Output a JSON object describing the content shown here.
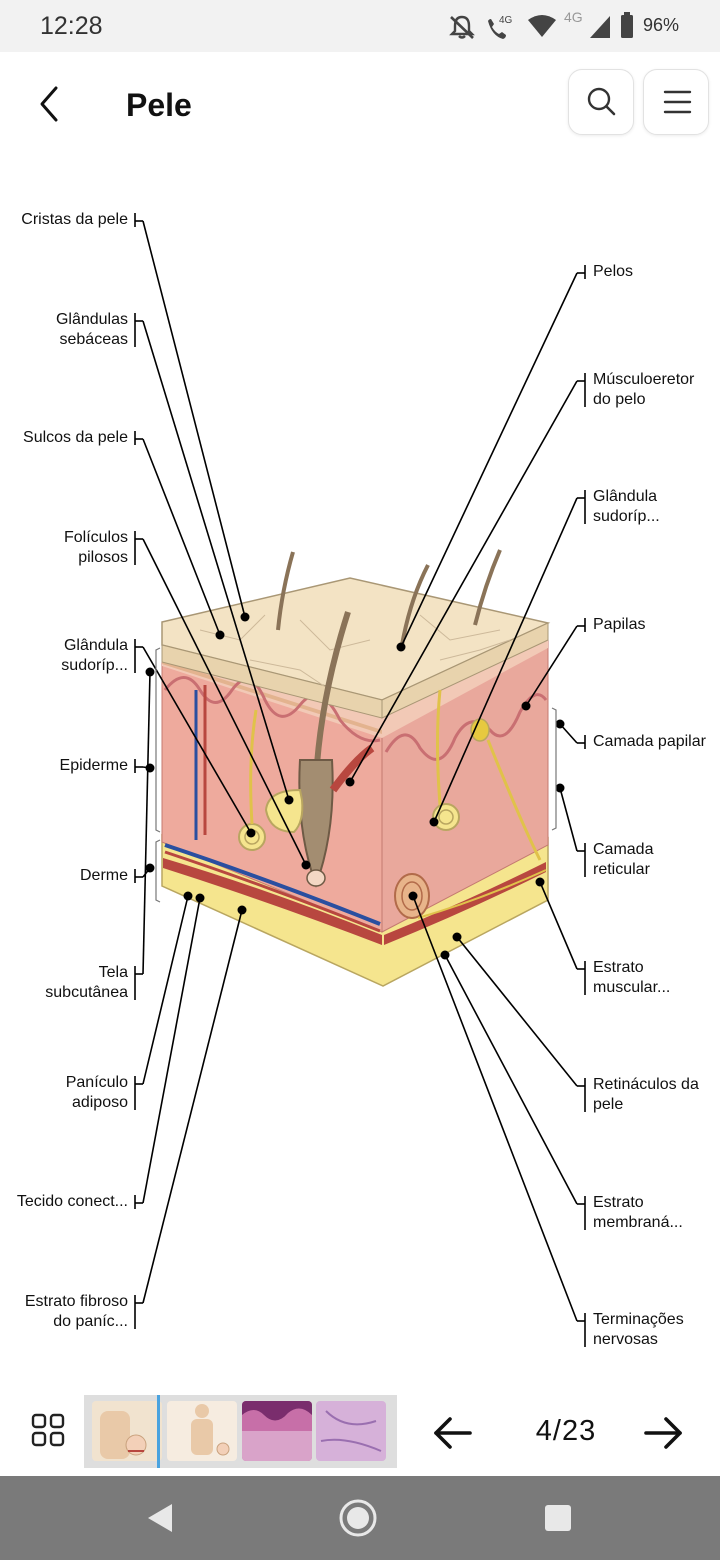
{
  "status": {
    "time": "12:28",
    "network": "4G",
    "battery": "96%"
  },
  "header": {
    "title": "Pele"
  },
  "labels_left": [
    {
      "id": "cristas",
      "lines": [
        "Cristas da pele"
      ]
    },
    {
      "id": "sebaceas",
      "lines": [
        "Glândulas",
        "sebáceas"
      ]
    },
    {
      "id": "sulcos",
      "lines": [
        "Sulcos da pele"
      ]
    },
    {
      "id": "foliculos",
      "lines": [
        "Folículos",
        "pilosos"
      ]
    },
    {
      "id": "sudorip-left",
      "lines": [
        "Glândula",
        "sudoríp..."
      ]
    },
    {
      "id": "epiderme",
      "lines": [
        "Epiderme"
      ]
    },
    {
      "id": "derme",
      "lines": [
        "Derme"
      ]
    },
    {
      "id": "tela",
      "lines": [
        "Tela",
        "subcutânea"
      ]
    },
    {
      "id": "paniculo",
      "lines": [
        "Panículo",
        "adiposo"
      ]
    },
    {
      "id": "tecido",
      "lines": [
        "Tecido conect..."
      ]
    },
    {
      "id": "estrato-fibroso",
      "lines": [
        "Estrato fibroso",
        "do paníc..."
      ]
    }
  ],
  "labels_right": [
    {
      "id": "pelos",
      "lines": [
        "Pelos"
      ]
    },
    {
      "id": "musculo",
      "lines": [
        "Músculoeretor",
        "do pelo"
      ]
    },
    {
      "id": "sudorip-right",
      "lines": [
        "Glândula",
        "sudoríp..."
      ]
    },
    {
      "id": "papilas",
      "lines": [
        "Papilas"
      ]
    },
    {
      "id": "camada-papilar",
      "lines": [
        "Camada papilar"
      ]
    },
    {
      "id": "camada-reticular",
      "lines": [
        "Camada",
        "reticular"
      ]
    },
    {
      "id": "estrato-muscular",
      "lines": [
        "Estrato",
        "muscular..."
      ]
    },
    {
      "id": "retinaculos",
      "lines": [
        "Retináculos da",
        "pele"
      ]
    },
    {
      "id": "estrato-membrana",
      "lines": [
        "Estrato",
        "membraná..."
      ]
    },
    {
      "id": "terminacoes",
      "lines": [
        "Terminações",
        "nervosas"
      ]
    }
  ],
  "pager": {
    "current": "4",
    "total": "23",
    "display": "4/23"
  },
  "thumbnails": [
    {
      "name": "body-arm-view",
      "active": true
    },
    {
      "name": "body-front-view",
      "active": false
    },
    {
      "name": "histology-epidermis",
      "active": false
    },
    {
      "name": "histology-dermis",
      "active": false
    }
  ],
  "colors": {
    "surface": "#f3e3c4",
    "epidermis": "#f2c9b6",
    "dermis": "#e9a89c",
    "fat": "#f5e58e",
    "muscle": "#b8473f",
    "vein": "#2a4fa0",
    "nerve": "#e0c24a",
    "hair": "#8a7358",
    "statusbar": "#f2f2f2",
    "navbar": "#7a7a7a",
    "active_thumb_marker": "#4aa3df"
  },
  "icons": [
    "back-icon",
    "search-icon",
    "menu-icon",
    "grid-icon",
    "arrow-left-icon",
    "arrow-right-icon",
    "nav-back-icon",
    "nav-home-icon",
    "nav-recents-icon",
    "wifi-icon",
    "signal-icon",
    "battery-icon",
    "mute-icon",
    "call-icon"
  ]
}
